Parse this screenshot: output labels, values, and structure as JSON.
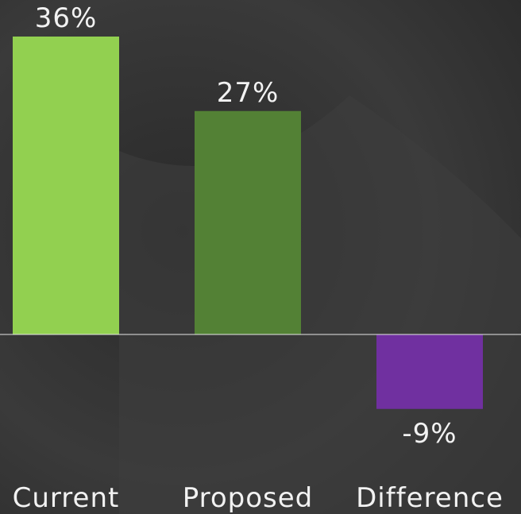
{
  "chart_data": {
    "type": "bar",
    "categories": [
      "Current",
      "Proposed",
      "Difference"
    ],
    "values": [
      36,
      27,
      -9
    ],
    "value_labels": [
      "36%",
      "27%",
      "-9%"
    ],
    "colors": [
      "#92d050",
      "#538135",
      "#7030a0"
    ]
  }
}
